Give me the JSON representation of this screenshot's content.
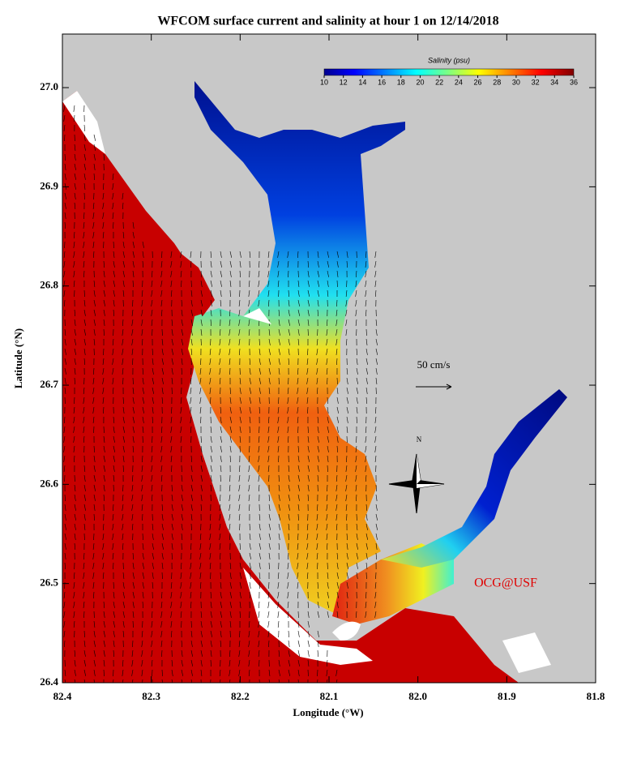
{
  "title": "WFCOM surface current and salinity at hour 1 on 12/14/2018",
  "x_axis": {
    "label": "Longitude (°W)",
    "lim": [
      82.4,
      81.8
    ],
    "ticks": [
      82.4,
      82.3,
      82.2,
      82.1,
      {
        "value": 82,
        "label": "82.0"
      },
      81.9,
      81.8
    ]
  },
  "y_axis": {
    "label": "Latitude (°N)",
    "lim": [
      26.4,
      27.054
    ],
    "ticks": [
      26.4,
      26.5,
      26.6,
      26.7,
      26.8,
      26.9,
      {
        "value": 27,
        "label": "27.0"
      }
    ]
  },
  "colorbar": {
    "title": "Salinity (psu)",
    "lim": [
      10,
      36
    ],
    "ticks": [
      10,
      12,
      14,
      16,
      18,
      20,
      22,
      24,
      26,
      28,
      30,
      32,
      34,
      36
    ]
  },
  "scale_label": "50 cm/s",
  "compass_label": "N",
  "credit": "OCG@USF"
}
